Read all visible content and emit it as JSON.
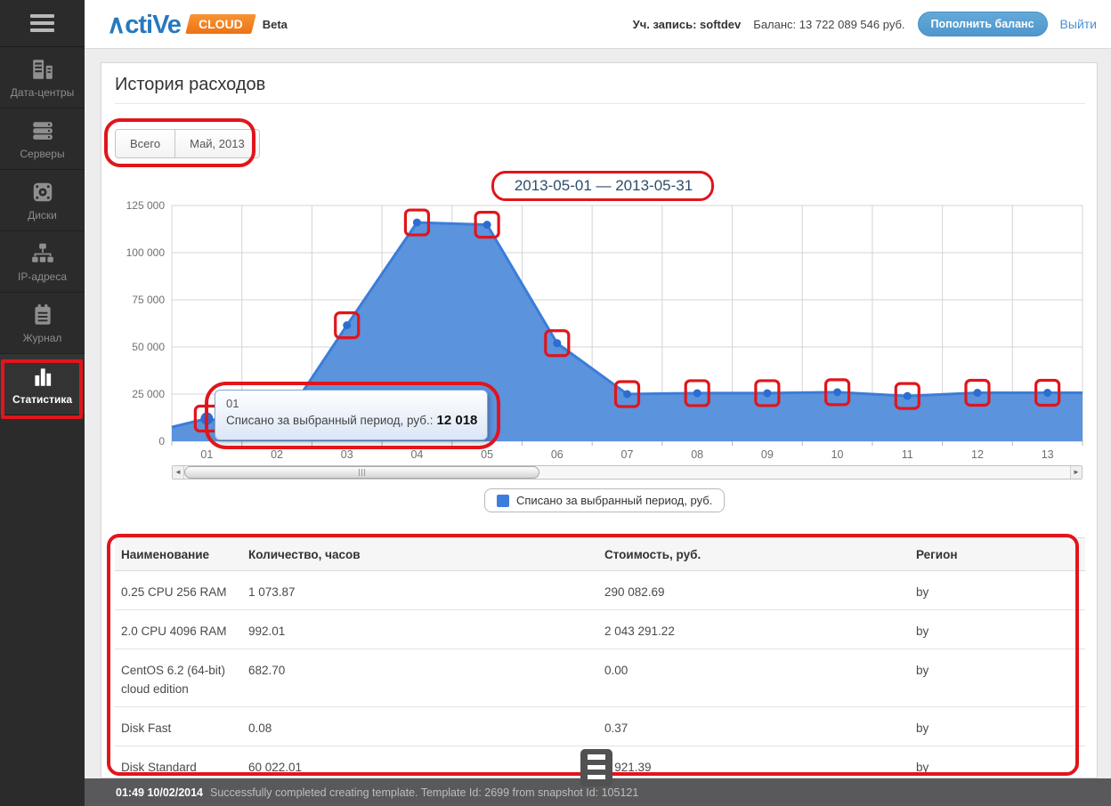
{
  "header": {
    "brand_name": "∧ctiVe",
    "brand_tag": "CLOUD",
    "beta": "Beta",
    "account": "Уч. запись: softdev",
    "balance": "Баланс: 13 722 089 546 руб.",
    "topup_button": "Пополнить баланс",
    "logout": "Выйти"
  },
  "sidebar": {
    "items": [
      {
        "label": "Дата-центры",
        "icon": "datacenter-icon",
        "active": false
      },
      {
        "label": "Серверы",
        "icon": "servers-icon",
        "active": false
      },
      {
        "label": "Диски",
        "icon": "disks-icon",
        "active": false
      },
      {
        "label": "IP-адреса",
        "icon": "ip-addresses-icon",
        "active": false
      },
      {
        "label": "Журнал",
        "icon": "journal-icon",
        "active": false
      },
      {
        "label": "Статистика",
        "icon": "statistics-icon",
        "active": true
      }
    ]
  },
  "page": {
    "title": "История расходов"
  },
  "tabs": [
    {
      "label": "Всего"
    },
    {
      "label": "Май, 2013"
    }
  ],
  "chart_data": {
    "type": "area",
    "title": "2013-05-01 — 2013-05-31",
    "categories": [
      "01",
      "02",
      "03",
      "04",
      "05",
      "06",
      "07",
      "08",
      "09",
      "10",
      "11",
      "12",
      "13"
    ],
    "series": [
      {
        "name": "Списано за выбранный период, руб.",
        "values": [
          12018,
          5700,
          61500,
          116000,
          114800,
          52000,
          25000,
          25500,
          25500,
          26000,
          24000,
          25700,
          25700
        ]
      }
    ],
    "left_edge_value": 7500,
    "right_edge_value": 25700,
    "ylim": [
      0,
      125000
    ],
    "yticks": [
      0,
      25000,
      50000,
      75000,
      100000,
      125000
    ],
    "ytick_labels": [
      "0",
      "25 000",
      "50 000",
      "75 000",
      "100 000",
      "125 000"
    ],
    "grid": true,
    "legend_position": "bottom",
    "colors": {
      "area_fill": "#5b93dd",
      "line": "#3b7dd8",
      "marker": "#2c6dd2",
      "grid": "#d4d4d4",
      "tick_text": "#6f6f6f"
    },
    "tooltip": {
      "title": "01",
      "label": "Списано за выбранный период, руб.:",
      "value": "12 018"
    }
  },
  "legend": {
    "label": "Списано за выбранный период, руб."
  },
  "table": {
    "columns": [
      "Наименование",
      "Количество, часов",
      "Стоимость, руб.",
      "Регион"
    ],
    "rows": [
      [
        "0.25 CPU 256 RAM",
        "1 073.87",
        "290 082.69",
        "by"
      ],
      [
        "2.0 CPU 4096 RAM",
        "992.01",
        "2 043 291.22",
        "by"
      ],
      [
        "CentOS 6.2 (64-bit) cloud edition",
        "682.70",
        "0.00",
        "by"
      ],
      [
        "Disk Fast",
        "0.08",
        "0.37",
        "by"
      ],
      [
        "Disk Standard",
        "60 022.01",
        "9 921.39",
        "by"
      ]
    ]
  },
  "statusbar": {
    "timestamp": "01:49 10/02/2014",
    "message": "Successfully completed creating template. Template Id: 2699 from snapshot Id: 105121"
  },
  "annotations": {
    "color": "#e1151b",
    "marker_indices": [
      0,
      2,
      3,
      4,
      5,
      6,
      7,
      8,
      9,
      10,
      11,
      12
    ]
  }
}
